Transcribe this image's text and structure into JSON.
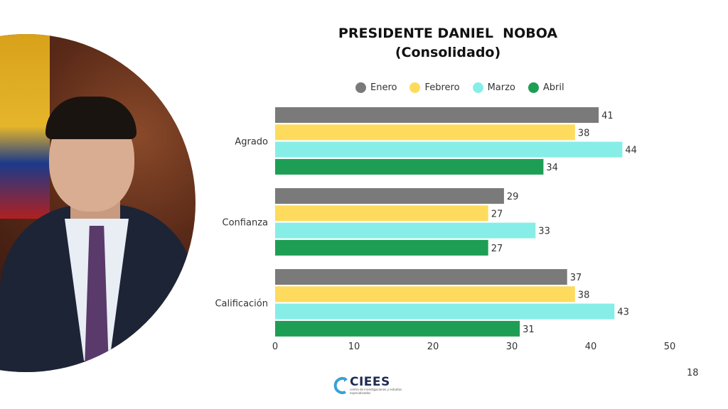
{
  "chart_data": {
    "type": "bar",
    "orientation": "horizontal",
    "title": "PRESIDENTE DANIEL  NOBOA",
    "subtitle": "(Consolidado)",
    "categories": [
      "Agrado",
      "Confianza",
      "Calificación"
    ],
    "series": [
      {
        "name": "Enero",
        "color": "#7a7a7a",
        "values": [
          41,
          29,
          37
        ]
      },
      {
        "name": "Febrero",
        "color": "#fedb5c",
        "values": [
          38,
          27,
          38
        ]
      },
      {
        "name": "Marzo",
        "color": "#86eee7",
        "values": [
          44,
          33,
          43
        ]
      },
      {
        "name": "Abril",
        "color": "#1e9e55",
        "values": [
          34,
          27,
          31
        ]
      }
    ],
    "xlim": [
      0,
      50
    ],
    "xticks": [
      "0",
      "10",
      "20",
      "30",
      "40",
      "50"
    ],
    "grid": false,
    "legend": "top",
    "data_labels": true
  },
  "page_number": "18",
  "logo": {
    "name": "CIEES",
    "tagline": "centro de investigaciones y estudios especializados"
  },
  "photo": {
    "description_icon": "president-portrait"
  }
}
